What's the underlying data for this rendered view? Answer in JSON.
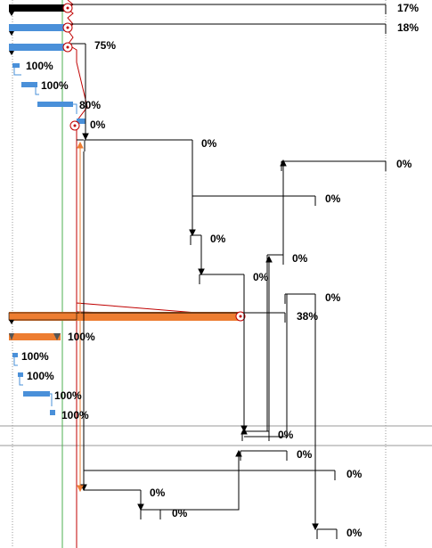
{
  "colors": {
    "summary_black": "#000000",
    "task_blue": "#4a90d9",
    "task_orange": "#ed7d31",
    "critical_red": "#c00000",
    "baseline_green": "#4caf50",
    "link_black": "#000000",
    "gridline": "#9a9a9a"
  },
  "gantt": {
    "rows": [
      {
        "kind": "summary-black",
        "label": "17%"
      },
      {
        "kind": "summary-blue",
        "label": "18%"
      },
      {
        "kind": "summary-blue",
        "label": "75%"
      },
      {
        "kind": "task-blue",
        "label": "100%"
      },
      {
        "kind": "task-blue",
        "label": "100%"
      },
      {
        "kind": "task-blue",
        "label": "80%"
      },
      {
        "kind": "task-blue",
        "label": "0%"
      },
      {
        "kind": "summary-outline",
        "label": "0%"
      },
      {
        "kind": "summary-outline",
        "label": "0%"
      },
      {
        "kind": "summary-outline",
        "label": "0%"
      },
      {
        "kind": "summary-outline",
        "label": "0%"
      },
      {
        "kind": "summary-outline",
        "label": "0%"
      },
      {
        "kind": "summary-outline",
        "label": "0%"
      },
      {
        "kind": "summary-outline",
        "label": "0%"
      },
      {
        "kind": "summary-orange",
        "label": "38%"
      },
      {
        "kind": "summary-orange-small",
        "label": "100%"
      },
      {
        "kind": "task-blue",
        "label": "100%"
      },
      {
        "kind": "task-blue",
        "label": "100%"
      },
      {
        "kind": "task-blue",
        "label": "100%"
      },
      {
        "kind": "task-blue",
        "label": "100%"
      },
      {
        "kind": "summary-outline",
        "label": "0%"
      },
      {
        "kind": "summary-outline",
        "label": "0%"
      },
      {
        "kind": "summary-outline",
        "label": "0%"
      },
      {
        "kind": "summary-outline",
        "label": "0%"
      },
      {
        "kind": "summary-outline",
        "label": "0%"
      },
      {
        "kind": "summary-outline",
        "label": "0%"
      }
    ]
  }
}
